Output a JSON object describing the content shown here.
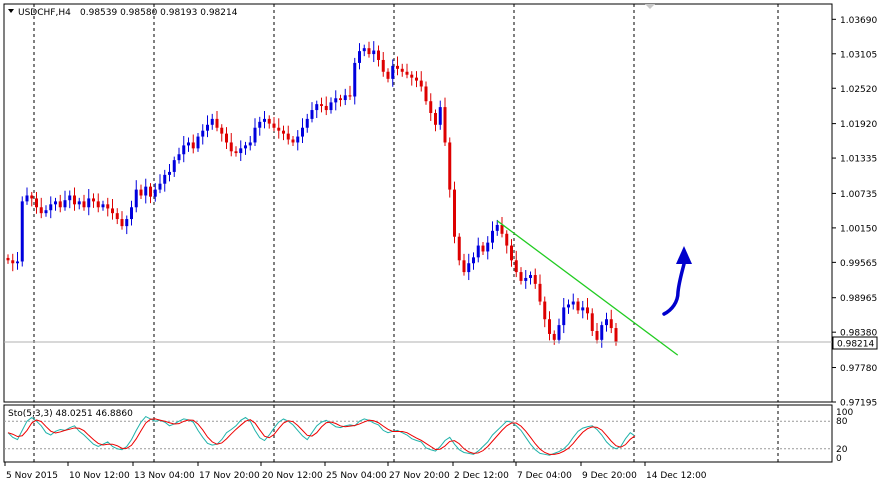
{
  "chart_data": {
    "type": "candlestick",
    "header": {
      "symbol": "USDCHF,H4",
      "ohlc": "0.98539 0.98580 0.98193 0.98214"
    },
    "price_axis": {
      "ylim": [
        0.97195,
        1.0395
      ],
      "ticks": [
        "1.03690",
        "1.03105",
        "1.02520",
        "1.01920",
        "1.01335",
        "1.00735",
        "1.00150",
        "0.99565",
        "0.98965",
        "0.98380",
        "0.97780",
        "0.97195"
      ],
      "current_price": "0.98214",
      "current_price_value": 0.98214
    },
    "time_axis": {
      "labels": [
        "5 Nov 2015",
        "10 Nov 12:00",
        "13 Nov 04:00",
        "17 Nov 20:00",
        "20 Nov 12:00",
        "25 Nov 04:00",
        "27 Nov 20:00",
        "2 Dec 12:00",
        "7 Dec 04:00",
        "9 Dec 20:00",
        "14 Dec 12:00"
      ]
    },
    "closes": [
      0.996,
      0.9955,
      0.9958,
      1.006,
      1.007,
      1.0065,
      1.005,
      1.004,
      1.0045,
      1.0055,
      1.006,
      1.005,
      1.0062,
      1.007,
      1.0055,
      1.006,
      1.005,
      1.0065,
      1.006,
      1.005,
      1.0055,
      1.0048,
      1.004,
      1.003,
      1.0018,
      1.003,
      1.005,
      1.008,
      1.007,
      1.0085,
      1.0068,
      1.008,
      1.009,
      1.0105,
      1.011,
      1.013,
      1.014,
      1.0155,
      1.016,
      1.015,
      1.017,
      1.018,
      1.019,
      1.02,
      1.0185,
      1.0175,
      1.016,
      1.0145,
      1.0142,
      1.015,
      1.0155,
      1.016,
      1.0185,
      1.0195,
      1.02,
      1.0192,
      1.0185,
      1.018,
      1.0175,
      1.0165,
      1.016,
      1.017,
      1.0185,
      1.02,
      1.0215,
      1.0225,
      1.0222,
      1.0215,
      1.0228,
      1.0235,
      1.0232,
      1.024,
      1.0238,
      1.0295,
      1.0315,
      1.032,
      1.031,
      1.0316,
      1.03,
      1.028,
      1.0268,
      1.029,
      1.0285,
      1.028,
      1.0275,
      1.027,
      1.0265,
      1.0255,
      1.023,
      1.021,
      1.019,
      1.022,
      1.016,
      1.008,
      1.0,
      0.996,
      0.994,
      0.9955,
      0.9965,
      0.9985,
      0.9975,
      0.999,
      1.001,
      1.002,
      1.0005,
      0.9985,
      0.996,
      0.994,
      0.9925,
      0.993,
      0.9935,
      0.992,
      0.989,
      0.986,
      0.9835,
      0.9825,
      0.985,
      0.988,
      0.9885,
      0.989,
      0.9875,
      0.988,
      0.987,
      0.984,
      0.9825,
      0.985,
      0.986,
      0.9845,
      0.9821
    ],
    "trendline": {
      "from": {
        "bar": 103,
        "price": 1.0027
      },
      "to": {
        "bar": 141,
        "price": 0.9799
      },
      "color": "#22cc22"
    },
    "annotation_arrow": {
      "color": "#0000cc",
      "direction": "up"
    },
    "stochastic": {
      "label": "Sto(5,3,3) 48.0251 46.8860",
      "levels": [
        "100",
        "80",
        "20",
        "0"
      ],
      "main_color": "#20b2aa",
      "signal_color": "#ee0000",
      "main": [
        55,
        45,
        40,
        60,
        80,
        88,
        80,
        70,
        55,
        50,
        58,
        62,
        60,
        66,
        70,
        58,
        50,
        40,
        30,
        25,
        30,
        35,
        25,
        20,
        18,
        25,
        40,
        60,
        78,
        90,
        85,
        80,
        82,
        78,
        70,
        74,
        80,
        85,
        83,
        78,
        60,
        45,
        32,
        28,
        30,
        40,
        55,
        62,
        70,
        82,
        88,
        80,
        60,
        44,
        38,
        50,
        65,
        78,
        85,
        80,
        72,
        60,
        48,
        40,
        55,
        70,
        78,
        82,
        75,
        68,
        66,
        70,
        72,
        70,
        80,
        85,
        82,
        76,
        72,
        60,
        55,
        58,
        60,
        55,
        50,
        42,
        38,
        35,
        22,
        18,
        15,
        25,
        38,
        45,
        30,
        18,
        12,
        10,
        8,
        15,
        25,
        35,
        50,
        60,
        70,
        80,
        78,
        70,
        60,
        45,
        30,
        18,
        10,
        8,
        6,
        10,
        14,
        20,
        30,
        45,
        58,
        65,
        68,
        70,
        62,
        50,
        35,
        25,
        20,
        25,
        42,
        55,
        48
      ]
    },
    "bull_color": "#0000dd",
    "bear_color": "#dd0000"
  }
}
